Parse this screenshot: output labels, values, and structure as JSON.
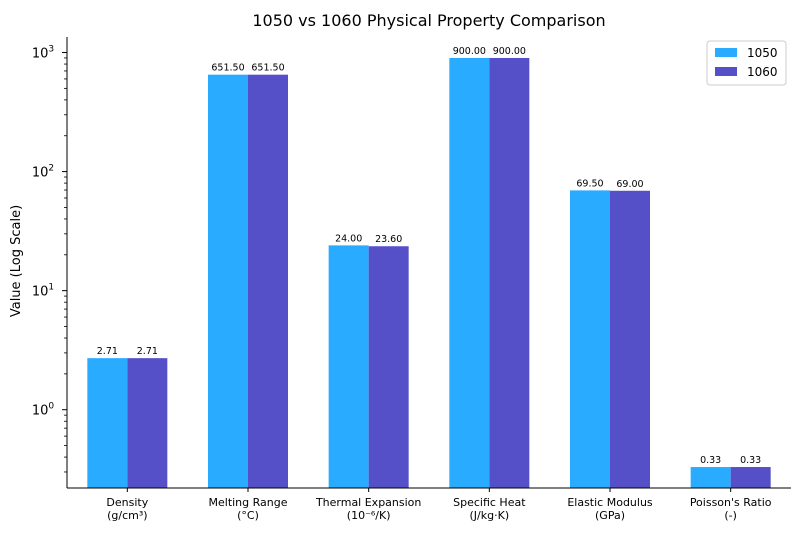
{
  "chart_data": {
    "type": "bar",
    "title": "1050 vs 1060 Physical Property Comparison",
    "xlabel": "",
    "ylabel": "Value (Log Scale)",
    "yscale": "log",
    "ylim": [
      0.22,
      1350
    ],
    "yticks": [
      {
        "value": 1,
        "base": "10",
        "exp": "0"
      },
      {
        "value": 10,
        "base": "10",
        "exp": "1"
      },
      {
        "value": 100,
        "base": "10",
        "exp": "2"
      },
      {
        "value": 1000,
        "base": "10",
        "exp": "3"
      }
    ],
    "categories": [
      [
        "Density",
        "(g/cm³)"
      ],
      [
        "Melting Range",
        "(°C)"
      ],
      [
        "Thermal Expansion",
        "(10⁻⁶/K)"
      ],
      [
        "Specific Heat",
        "(J/kg·K)"
      ],
      [
        "Elastic Modulus",
        "(GPa)"
      ],
      [
        "Poisson's Ratio",
        "(-)"
      ]
    ],
    "series": [
      {
        "name": "1050",
        "color": "#29ABFF",
        "values": [
          2.71,
          651.5,
          24.0,
          900.0,
          69.5,
          0.33
        ],
        "labels": [
          "2.71",
          "651.50",
          "24.00",
          "900.00",
          "69.50",
          "0.33"
        ]
      },
      {
        "name": "1060",
        "color": "#5550C8",
        "values": [
          2.71,
          651.5,
          23.6,
          900.0,
          69.0,
          0.33
        ],
        "labels": [
          "2.71",
          "651.50",
          "23.60",
          "900.00",
          "69.00",
          "0.33"
        ]
      }
    ],
    "grid": false,
    "legend": "top-right"
  }
}
